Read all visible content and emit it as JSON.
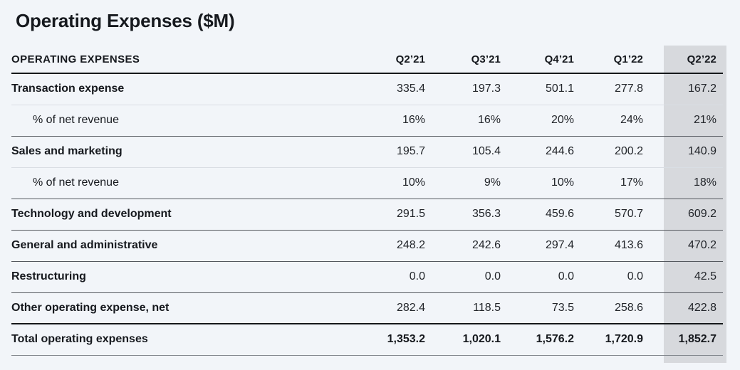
{
  "title": "Operating Expenses ($M)",
  "chart_data": {
    "type": "table",
    "title": "Operating Expenses ($M)",
    "header_label": "OPERATING EXPENSES",
    "columns": [
      "Q2’21",
      "Q3’21",
      "Q4’21",
      "Q1’22",
      "Q2’22"
    ],
    "highlight_column": "Q2’22",
    "rows": [
      {
        "label": "Transaction expense",
        "style": "expense",
        "divider": "light",
        "values": [
          "335.4",
          "197.3",
          "501.1",
          "277.8",
          "167.2"
        ]
      },
      {
        "label": "% of net revenue",
        "style": "percent",
        "divider": "dark",
        "values": [
          "16%",
          "16%",
          "20%",
          "24%",
          "21%"
        ]
      },
      {
        "label": "Sales and marketing",
        "style": "expense",
        "divider": "light",
        "values": [
          "195.7",
          "105.4",
          "244.6",
          "200.2",
          "140.9"
        ]
      },
      {
        "label": "% of net revenue",
        "style": "percent",
        "divider": "dark",
        "values": [
          "10%",
          "9%",
          "10%",
          "17%",
          "18%"
        ]
      },
      {
        "label": "Technology and development",
        "style": "expense",
        "divider": "dark",
        "values": [
          "291.5",
          "356.3",
          "459.6",
          "570.7",
          "609.2"
        ]
      },
      {
        "label": "General and administrative",
        "style": "expense",
        "divider": "dark",
        "values": [
          "248.2",
          "242.6",
          "297.4",
          "413.6",
          "470.2"
        ]
      },
      {
        "label": "Restructuring",
        "style": "expense",
        "divider": "dark",
        "values": [
          "0.0",
          "0.0",
          "0.0",
          "0.0",
          "42.5"
        ]
      },
      {
        "label": "Other operating expense, net",
        "style": "expense",
        "divider": "black",
        "values": [
          "282.4",
          "118.5",
          "73.5",
          "258.6",
          "422.8"
        ]
      },
      {
        "label": "Total operating expenses",
        "style": "total",
        "divider": "gray",
        "values": [
          "1,353.2",
          "1,020.1",
          "1,576.2",
          "1,720.9",
          "1,852.7"
        ]
      }
    ]
  },
  "colors": {
    "bg": "#f2f5f9",
    "band": "#d7d9dd",
    "text": "#16191e",
    "num": "#22252a",
    "line_black": "#15181a",
    "line_dark": "#54585e",
    "line_light": "#d9dee4",
    "line_gray": "#82878d"
  }
}
